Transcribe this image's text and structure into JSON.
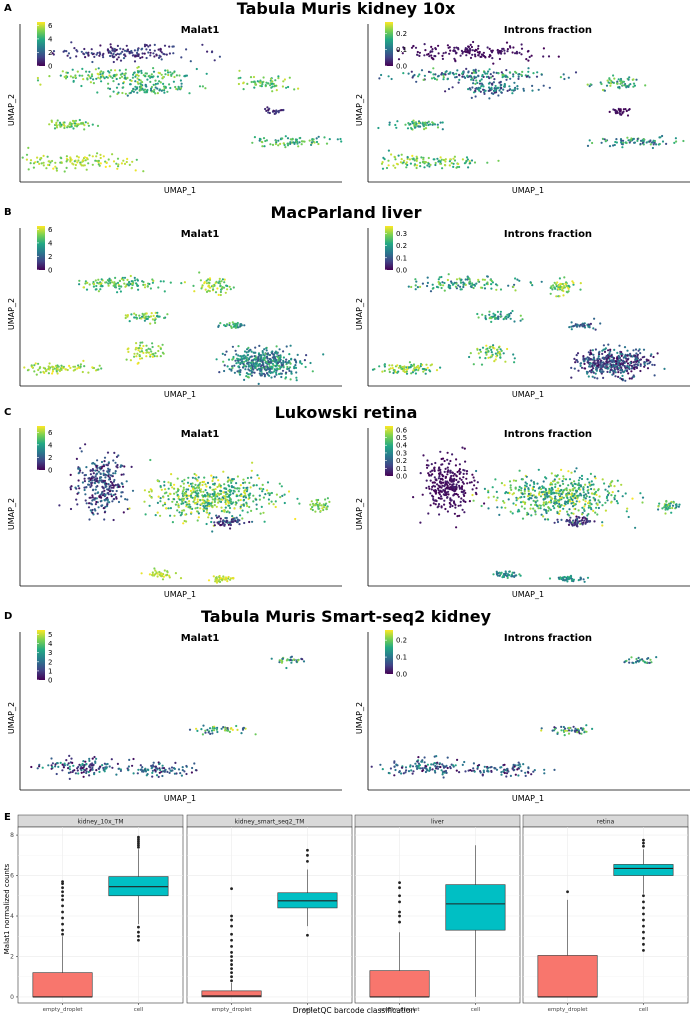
{
  "colors": {
    "empty_droplet": "#f8766d",
    "cell": "#00bfc4",
    "strip_fill": "#d9d9d9",
    "viridis": [
      "#440154",
      "#414487",
      "#2a788e",
      "#22a884",
      "#7ad151",
      "#fde725"
    ]
  },
  "chart_data": [
    {
      "type": "scatter",
      "panel_letter": "A",
      "title": "Tabula Muris kidney 10x",
      "xlabel": "UMAP_1",
      "ylabel": "UMAP_2",
      "subplots": [
        {
          "subtitle": "Malat1",
          "legend_ticks": [
            "6",
            "4",
            "2",
            "0"
          ],
          "legend_range": [
            0,
            6.5
          ],
          "clusters": [
            {
              "cx": 0.32,
              "cy": 0.9,
              "sx": 0.19,
              "sy": 0.05,
              "n": 160,
              "vmin": 0.05,
              "vmax": 0.3
            },
            {
              "cx": 0.31,
              "cy": 0.74,
              "sx": 0.21,
              "sy": 0.04,
              "n": 160,
              "vmin": 0.5,
              "vmax": 0.95
            },
            {
              "cx": 0.4,
              "cy": 0.65,
              "sx": 0.12,
              "sy": 0.04,
              "n": 100,
              "vmin": 0.4,
              "vmax": 0.85
            },
            {
              "cx": 0.76,
              "cy": 0.68,
              "sx": 0.07,
              "sy": 0.04,
              "n": 60,
              "vmin": 0.55,
              "vmax": 0.95
            },
            {
              "cx": 0.79,
              "cy": 0.49,
              "sx": 0.03,
              "sy": 0.02,
              "n": 25,
              "vmin": 0.05,
              "vmax": 0.2
            },
            {
              "cx": 0.16,
              "cy": 0.4,
              "sx": 0.07,
              "sy": 0.03,
              "n": 60,
              "vmin": 0.6,
              "vmax": 0.95
            },
            {
              "cx": 0.84,
              "cy": 0.28,
              "sx": 0.12,
              "sy": 0.03,
              "n": 80,
              "vmin": 0.4,
              "vmax": 0.9
            },
            {
              "cx": 0.17,
              "cy": 0.14,
              "sx": 0.17,
              "sy": 0.05,
              "n": 120,
              "vmin": 0.7,
              "vmax": 1.0
            }
          ]
        },
        {
          "subtitle": "Introns fraction",
          "legend_ticks": [
            "0.2",
            "0.1",
            "0.0"
          ],
          "legend_range": [
            0,
            0.27
          ],
          "clusters": [
            {
              "cx": 0.32,
              "cy": 0.9,
              "sx": 0.19,
              "sy": 0.05,
              "n": 160,
              "vmin": 0.0,
              "vmax": 0.1
            },
            {
              "cx": 0.31,
              "cy": 0.74,
              "sx": 0.21,
              "sy": 0.04,
              "n": 160,
              "vmin": 0.1,
              "vmax": 0.8
            },
            {
              "cx": 0.4,
              "cy": 0.65,
              "sx": 0.12,
              "sy": 0.04,
              "n": 100,
              "vmin": 0.1,
              "vmax": 0.6
            },
            {
              "cx": 0.76,
              "cy": 0.68,
              "sx": 0.07,
              "sy": 0.04,
              "n": 60,
              "vmin": 0.3,
              "vmax": 0.9
            },
            {
              "cx": 0.79,
              "cy": 0.49,
              "sx": 0.03,
              "sy": 0.02,
              "n": 25,
              "vmin": 0.0,
              "vmax": 0.1
            },
            {
              "cx": 0.16,
              "cy": 0.4,
              "sx": 0.07,
              "sy": 0.03,
              "n": 60,
              "vmin": 0.4,
              "vmax": 0.9
            },
            {
              "cx": 0.84,
              "cy": 0.28,
              "sx": 0.12,
              "sy": 0.03,
              "n": 80,
              "vmin": 0.2,
              "vmax": 0.8
            },
            {
              "cx": 0.17,
              "cy": 0.14,
              "sx": 0.17,
              "sy": 0.05,
              "n": 120,
              "vmin": 0.5,
              "vmax": 1.0
            }
          ]
        }
      ]
    },
    {
      "type": "scatter",
      "panel_letter": "B",
      "title": "MacParland liver",
      "xlabel": "UMAP_1",
      "ylabel": "UMAP_2",
      "subplots": [
        {
          "subtitle": "Malat1",
          "legend_ticks": [
            "6",
            "4",
            "2",
            "0"
          ],
          "legend_range": [
            0,
            6.5
          ],
          "clusters": [
            {
              "cx": 0.31,
              "cy": 0.71,
              "sx": 0.14,
              "sy": 0.04,
              "n": 120,
              "vmin": 0.5,
              "vmax": 0.95
            },
            {
              "cx": 0.6,
              "cy": 0.69,
              "sx": 0.04,
              "sy": 0.05,
              "n": 60,
              "vmin": 0.6,
              "vmax": 1.0
            },
            {
              "cx": 0.4,
              "cy": 0.48,
              "sx": 0.06,
              "sy": 0.03,
              "n": 50,
              "vmin": 0.5,
              "vmax": 0.95
            },
            {
              "cx": 0.66,
              "cy": 0.42,
              "sx": 0.04,
              "sy": 0.02,
              "n": 40,
              "vmin": 0.3,
              "vmax": 0.8
            },
            {
              "cx": 0.39,
              "cy": 0.24,
              "sx": 0.05,
              "sy": 0.06,
              "n": 60,
              "vmin": 0.7,
              "vmax": 1.0
            },
            {
              "cx": 0.12,
              "cy": 0.12,
              "sx": 0.1,
              "sy": 0.03,
              "n": 90,
              "vmin": 0.7,
              "vmax": 1.0
            },
            {
              "cx": 0.76,
              "cy": 0.16,
              "sx": 0.1,
              "sy": 0.09,
              "n": 420,
              "vmin": 0.2,
              "vmax": 0.75
            }
          ]
        },
        {
          "subtitle": "Introns fraction",
          "legend_ticks": [
            "0.3",
            "0.2",
            "0.1",
            "0.0"
          ],
          "legend_range": [
            0,
            0.36
          ],
          "clusters": [
            {
              "cx": 0.31,
              "cy": 0.71,
              "sx": 0.14,
              "sy": 0.04,
              "n": 120,
              "vmin": 0.3,
              "vmax": 0.9
            },
            {
              "cx": 0.6,
              "cy": 0.69,
              "sx": 0.04,
              "sy": 0.05,
              "n": 60,
              "vmin": 0.6,
              "vmax": 1.0
            },
            {
              "cx": 0.4,
              "cy": 0.48,
              "sx": 0.06,
              "sy": 0.03,
              "n": 50,
              "vmin": 0.3,
              "vmax": 0.8
            },
            {
              "cx": 0.66,
              "cy": 0.42,
              "sx": 0.04,
              "sy": 0.02,
              "n": 40,
              "vmin": 0.1,
              "vmax": 0.5
            },
            {
              "cx": 0.39,
              "cy": 0.24,
              "sx": 0.05,
              "sy": 0.06,
              "n": 60,
              "vmin": 0.5,
              "vmax": 1.0
            },
            {
              "cx": 0.12,
              "cy": 0.12,
              "sx": 0.1,
              "sy": 0.03,
              "n": 90,
              "vmin": 0.5,
              "vmax": 1.0
            },
            {
              "cx": 0.76,
              "cy": 0.16,
              "sx": 0.1,
              "sy": 0.09,
              "n": 420,
              "vmin": 0.0,
              "vmax": 0.5
            }
          ]
        }
      ]
    },
    {
      "type": "scatter",
      "panel_letter": "C",
      "title": "Lukowski retina",
      "xlabel": "UMAP_1",
      "ylabel": "UMAP_2",
      "subplots": [
        {
          "subtitle": "Malat1",
          "legend_ticks": [
            "6",
            "4",
            "2",
            "0"
          ],
          "legend_range": [
            0,
            7
          ],
          "clusters": [
            {
              "cx": 0.25,
              "cy": 0.7,
              "sx": 0.07,
              "sy": 0.17,
              "n": 300,
              "vmin": 0.0,
              "vmax": 0.45
            },
            {
              "cx": 0.59,
              "cy": 0.62,
              "sx": 0.17,
              "sy": 0.13,
              "n": 520,
              "vmin": 0.45,
              "vmax": 1.0
            },
            {
              "cx": 0.65,
              "cy": 0.45,
              "sx": 0.05,
              "sy": 0.03,
              "n": 60,
              "vmin": 0.0,
              "vmax": 0.4
            },
            {
              "cx": 0.93,
              "cy": 0.56,
              "sx": 0.03,
              "sy": 0.04,
              "n": 40,
              "vmin": 0.6,
              "vmax": 0.95
            },
            {
              "cx": 0.43,
              "cy": 0.08,
              "sx": 0.04,
              "sy": 0.02,
              "n": 40,
              "vmin": 0.8,
              "vmax": 1.0
            },
            {
              "cx": 0.63,
              "cy": 0.05,
              "sx": 0.04,
              "sy": 0.02,
              "n": 40,
              "vmin": 0.8,
              "vmax": 1.0
            }
          ]
        },
        {
          "subtitle": "Introns fraction",
          "legend_ticks": [
            "0.6",
            "0.5",
            "0.4",
            "0.3",
            "0.2",
            "0.1",
            "0.0"
          ],
          "legend_range": [
            0,
            0.65
          ],
          "clusters": [
            {
              "cx": 0.25,
              "cy": 0.7,
              "sx": 0.07,
              "sy": 0.17,
              "n": 300,
              "vmin": 0.0,
              "vmax": 0.1
            },
            {
              "cx": 0.59,
              "cy": 0.62,
              "sx": 0.17,
              "sy": 0.13,
              "n": 520,
              "vmin": 0.4,
              "vmax": 1.0
            },
            {
              "cx": 0.65,
              "cy": 0.45,
              "sx": 0.05,
              "sy": 0.03,
              "n": 60,
              "vmin": 0.0,
              "vmax": 0.3
            },
            {
              "cx": 0.93,
              "cy": 0.56,
              "sx": 0.03,
              "sy": 0.04,
              "n": 40,
              "vmin": 0.4,
              "vmax": 0.9
            },
            {
              "cx": 0.43,
              "cy": 0.08,
              "sx": 0.04,
              "sy": 0.02,
              "n": 40,
              "vmin": 0.3,
              "vmax": 0.7
            },
            {
              "cx": 0.63,
              "cy": 0.05,
              "sx": 0.04,
              "sy": 0.02,
              "n": 40,
              "vmin": 0.3,
              "vmax": 0.7
            }
          ]
        }
      ]
    },
    {
      "type": "scatter",
      "panel_letter": "D",
      "title": "Tabula Muris Smart-seq2 kidney",
      "xlabel": "UMAP_1",
      "ylabel": "UMAP_2",
      "subplots": [
        {
          "subtitle": "Malat1",
          "legend_ticks": [
            "5",
            "4",
            "3",
            "2",
            "1",
            "0"
          ],
          "legend_range": [
            0,
            5.5
          ],
          "clusters": [
            {
              "cx": 0.84,
              "cy": 0.9,
              "sx": 0.04,
              "sy": 0.02,
              "n": 30,
              "vmin": 0.1,
              "vmax": 0.9
            },
            {
              "cx": 0.64,
              "cy": 0.42,
              "sx": 0.07,
              "sy": 0.03,
              "n": 50,
              "vmin": 0.2,
              "vmax": 1.0
            },
            {
              "cx": 0.19,
              "cy": 0.16,
              "sx": 0.12,
              "sy": 0.05,
              "n": 120,
              "vmin": 0.0,
              "vmax": 0.6
            },
            {
              "cx": 0.42,
              "cy": 0.14,
              "sx": 0.11,
              "sy": 0.04,
              "n": 90,
              "vmin": 0.0,
              "vmax": 0.55
            }
          ]
        },
        {
          "subtitle": "Introns fraction",
          "legend_ticks": [
            "0.2",
            "0.1",
            "0.0"
          ],
          "legend_range": [
            0,
            0.26
          ],
          "clusters": [
            {
              "cx": 0.84,
              "cy": 0.9,
              "sx": 0.04,
              "sy": 0.02,
              "n": 30,
              "vmin": 0.2,
              "vmax": 0.8
            },
            {
              "cx": 0.64,
              "cy": 0.42,
              "sx": 0.07,
              "sy": 0.03,
              "n": 50,
              "vmin": 0.1,
              "vmax": 1.0
            },
            {
              "cx": 0.19,
              "cy": 0.16,
              "sx": 0.12,
              "sy": 0.05,
              "n": 120,
              "vmin": 0.0,
              "vmax": 0.6
            },
            {
              "cx": 0.42,
              "cy": 0.14,
              "sx": 0.11,
              "sy": 0.04,
              "n": 90,
              "vmin": 0.0,
              "vmax": 0.5
            }
          ]
        }
      ]
    },
    {
      "type": "box",
      "panel_letter": "E",
      "ylabel": "Malat1 normalized counts",
      "xlabel": "DropletQC barcode classification",
      "ylim": [
        -0.3,
        8.4
      ],
      "yticks": [
        0,
        2,
        4,
        6,
        8
      ],
      "categories": [
        "empty_droplet",
        "cell"
      ],
      "facets": [
        {
          "name": "kidney_10x_TM",
          "boxes": [
            {
              "min": 0,
              "q1": 0,
              "median": 0,
              "q3": 1.2,
              "max": 3.0,
              "outliers": [
                3.1,
                3.3,
                3.6,
                3.9,
                4.2,
                4.5,
                4.8,
                5.0,
                5.2,
                5.4,
                5.6,
                5.7
              ]
            },
            {
              "min": 3.6,
              "q1": 5.0,
              "median": 5.45,
              "q3": 5.95,
              "max": 7.3,
              "outliers": [
                2.8,
                3.0,
                3.2,
                3.45,
                7.4,
                7.5,
                7.6,
                7.7,
                7.8,
                7.9
              ]
            }
          ]
        },
        {
          "name": "kidney_smart_seq2_TM",
          "boxes": [
            {
              "min": 0,
              "q1": 0,
              "median": 0.05,
              "q3": 0.3,
              "max": 0.7,
              "outliers": [
                0.8,
                1.0,
                1.2,
                1.4,
                1.6,
                1.8,
                2.0,
                2.2,
                2.5,
                2.8,
                3.1,
                3.5,
                3.8,
                4.0,
                5.35
              ]
            },
            {
              "min": 3.5,
              "q1": 4.4,
              "median": 4.75,
              "q3": 5.15,
              "max": 6.3,
              "outliers": [
                3.05,
                6.7,
                7.0,
                7.25
              ]
            }
          ]
        },
        {
          "name": "liver",
          "boxes": [
            {
              "min": 0,
              "q1": 0,
              "median": 0,
              "q3": 1.3,
              "max": 3.2,
              "outliers": [
                3.7,
                4.0,
                4.2,
                4.7,
                5.0,
                5.4,
                5.65
              ]
            },
            {
              "min": 0,
              "q1": 3.3,
              "median": 4.6,
              "q3": 5.55,
              "max": 7.5,
              "outliers": []
            }
          ]
        },
        {
          "name": "retina",
          "boxes": [
            {
              "min": 0,
              "q1": 0,
              "median": 0,
              "q3": 2.05,
              "max": 4.8,
              "outliers": [
                5.2
              ]
            },
            {
              "min": 5.1,
              "q1": 6.0,
              "median": 6.35,
              "q3": 6.55,
              "max": 7.3,
              "outliers": [
                2.3,
                2.6,
                2.9,
                3.2,
                3.5,
                3.8,
                4.1,
                4.4,
                4.7,
                5.0,
                7.45,
                7.6,
                7.75
              ]
            }
          ]
        }
      ]
    }
  ]
}
